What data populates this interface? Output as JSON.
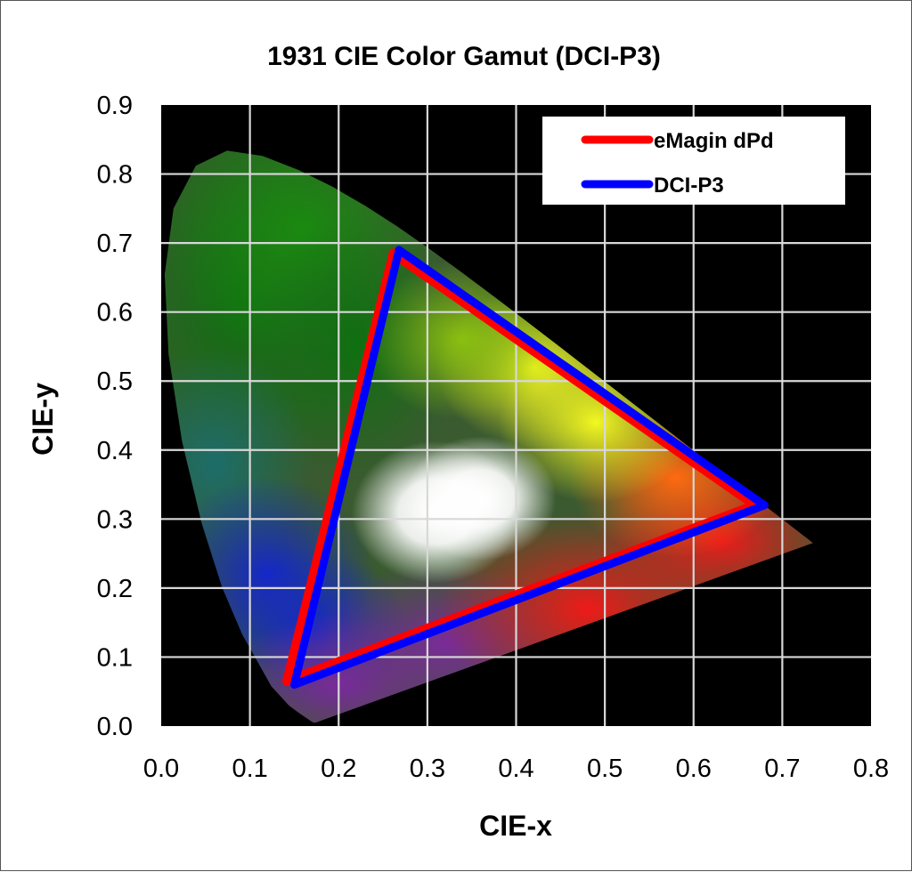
{
  "chart_data": {
    "type": "scatter",
    "title": "1931 CIE Color Gamut (DCI-P3)",
    "xlabel": "CIE-x",
    "ylabel": "CIE-y",
    "xlim": [
      0.0,
      0.8
    ],
    "ylim": [
      0.0,
      0.9
    ],
    "x_ticks": [
      "0.0",
      "0.1",
      "0.2",
      "0.3",
      "0.4",
      "0.5",
      "0.6",
      "0.7",
      "0.8"
    ],
    "y_ticks": [
      "0.0",
      "0.1",
      "0.2",
      "0.3",
      "0.4",
      "0.5",
      "0.6",
      "0.7",
      "0.8",
      "0.9"
    ],
    "grid": true,
    "background": "#000000",
    "legend_position": "top-right",
    "series": [
      {
        "name": "eMagin dPd",
        "color": "#ff0000",
        "points": [
          [
            0.262,
            0.685
          ],
          [
            0.67,
            0.32
          ],
          [
            0.142,
            0.065
          ]
        ]
      },
      {
        "name": "DCI-P3",
        "color": "#0000ff",
        "points": [
          [
            0.268,
            0.69
          ],
          [
            0.68,
            0.32
          ],
          [
            0.15,
            0.06
          ]
        ]
      }
    ]
  }
}
